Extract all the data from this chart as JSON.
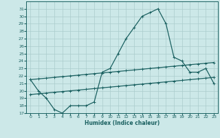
{
  "xlabel": "Humidex (Indice chaleur)",
  "xlim": [
    -0.5,
    23.5
  ],
  "ylim": [
    17,
    32
  ],
  "yticks": [
    17,
    18,
    19,
    20,
    21,
    22,
    23,
    24,
    25,
    26,
    27,
    28,
    29,
    30,
    31
  ],
  "xticks": [
    0,
    1,
    2,
    3,
    4,
    5,
    6,
    7,
    8,
    9,
    10,
    11,
    12,
    13,
    14,
    15,
    16,
    17,
    18,
    19,
    20,
    21,
    22,
    23
  ],
  "bg_color": "#cce8e8",
  "grid_color": "#aacccc",
  "line_color": "#1a6060",
  "curve1_x": [
    0,
    1,
    2,
    3,
    4,
    5,
    6,
    7,
    8,
    9,
    10,
    11,
    12,
    13,
    14,
    15,
    16,
    17,
    18,
    19,
    20,
    21,
    22,
    23
  ],
  "curve1_y": [
    21.5,
    20.0,
    19.0,
    17.5,
    17.0,
    18.0,
    18.0,
    18.0,
    18.5,
    22.5,
    23.0,
    25.0,
    27.0,
    28.5,
    30.0,
    30.5,
    31.0,
    29.0,
    24.5,
    24.0,
    22.5,
    22.5,
    23.0,
    21.0
  ],
  "line2_x": [
    0,
    1,
    2,
    3,
    4,
    5,
    6,
    7,
    8,
    9,
    10,
    11,
    12,
    13,
    14,
    15,
    16,
    17,
    18,
    19,
    20,
    21,
    22,
    23
  ],
  "line2_y": [
    21.5,
    21.6,
    21.7,
    21.8,
    21.9,
    22.0,
    22.1,
    22.2,
    22.3,
    22.4,
    22.5,
    22.6,
    22.7,
    22.8,
    22.9,
    23.0,
    23.1,
    23.2,
    23.3,
    23.4,
    23.5,
    23.6,
    23.7,
    23.8
  ],
  "line3_x": [
    0,
    1,
    2,
    3,
    4,
    5,
    6,
    7,
    8,
    9,
    10,
    11,
    12,
    13,
    14,
    15,
    16,
    17,
    18,
    19,
    20,
    21,
    22,
    23
  ],
  "line3_y": [
    19.5,
    19.6,
    19.7,
    19.8,
    19.9,
    20.0,
    20.1,
    20.2,
    20.3,
    20.4,
    20.5,
    20.6,
    20.7,
    20.8,
    20.9,
    21.0,
    21.1,
    21.2,
    21.3,
    21.4,
    21.5,
    21.6,
    21.7,
    21.8
  ]
}
